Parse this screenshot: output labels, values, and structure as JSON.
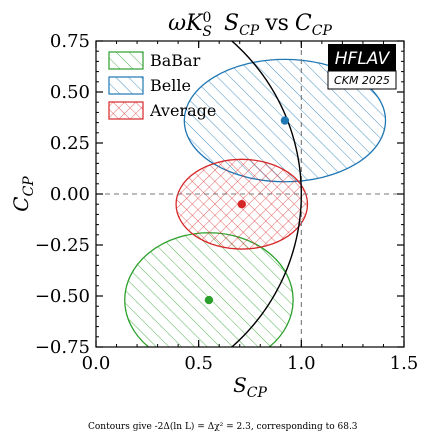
{
  "chart_data": {
    "type": "scatter",
    "title": "ωK_S^0  S_CP vs C_CP",
    "title_parts": {
      "main": "ωK",
      "sup": "0",
      "sub": "S",
      "s_main": "S",
      "s_sub": "CP",
      "vs": "vs",
      "c_main": "C",
      "c_sub": "CP"
    },
    "xlabel": {
      "main": "S",
      "sub": "CP"
    },
    "ylabel": {
      "main": "C",
      "sub": "CP"
    },
    "xlim": [
      0.0,
      1.5
    ],
    "ylim": [
      -0.75,
      0.75
    ],
    "xticks": [
      "0.0",
      "0.5",
      "1.0",
      "1.5"
    ],
    "xtick_values": [
      0.0,
      0.5,
      1.0,
      1.5
    ],
    "yticks": [
      "0.75",
      "0.50",
      "0.25",
      "0.00",
      "−0.25",
      "−0.50",
      "−0.75"
    ],
    "ytick_values": [
      0.75,
      0.5,
      0.25,
      0.0,
      -0.25,
      -0.5,
      -0.75
    ],
    "reference_lines": {
      "x": 1.0,
      "y": 0.0,
      "style": "dashed"
    },
    "physical_boundary": "unit circle S^2 + C^2 = 1",
    "grid": false,
    "legend_position": "top-left",
    "series": [
      {
        "name": "BaBar",
        "color": "#2ca02c",
        "point": {
          "x": 0.55,
          "y": -0.52
        },
        "ellipse": {
          "center": [
            0.55,
            -0.52
          ],
          "half_width_x": 0.41,
          "half_height_y": 0.33,
          "angle_deg": 0
        },
        "hatch": "diagonal"
      },
      {
        "name": "Belle",
        "color": "#1f77b4",
        "point": {
          "x": 0.92,
          "y": 0.36
        },
        "ellipse": {
          "center": [
            0.92,
            0.36
          ],
          "half_width_x": 0.49,
          "half_height_y": 0.3,
          "angle_deg": 0
        },
        "hatch": "diagonal"
      },
      {
        "name": "Average",
        "color": "#d62728",
        "point": {
          "x": 0.71,
          "y": -0.05
        },
        "ellipse": {
          "center": [
            0.71,
            -0.05
          ],
          "half_width_x": 0.32,
          "half_height_y": 0.22,
          "angle_deg": 0
        },
        "hatch": "cross"
      }
    ],
    "annotation": "Contours give -2Δ(ln L) = Δχ² = 2.3, corresponding to 68.3"
  },
  "logo": {
    "main": "HFLAV",
    "sub": "CKM 2025"
  }
}
